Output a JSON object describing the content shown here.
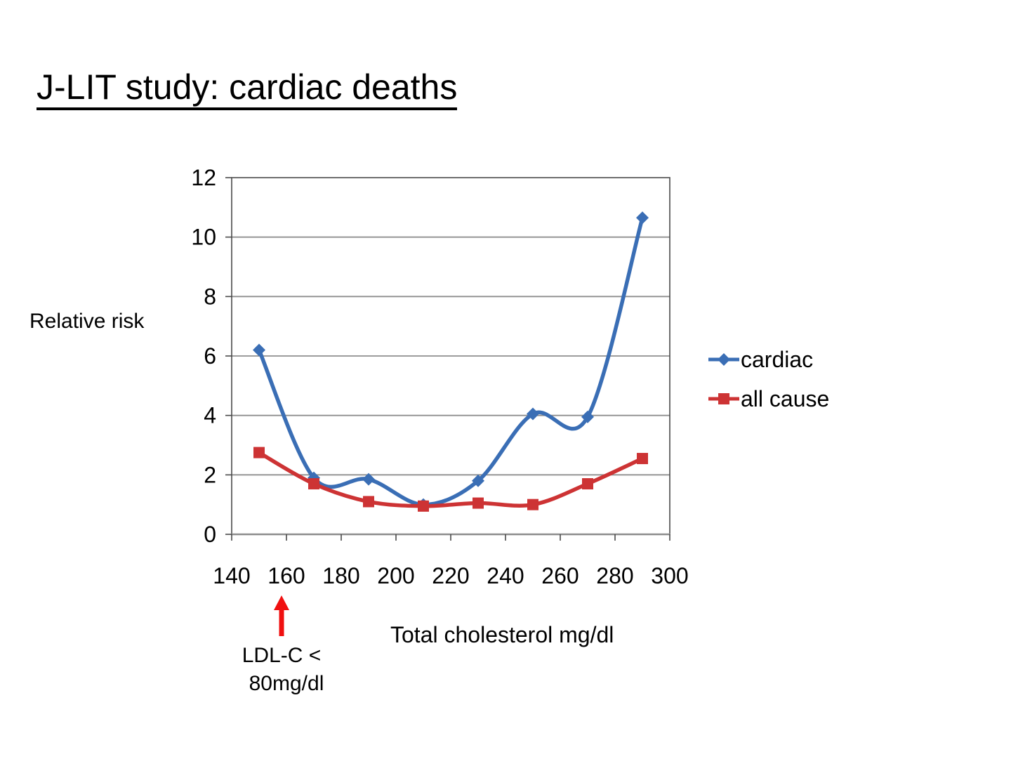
{
  "slide": {
    "title": "J-LIT study: cardiac deaths",
    "y_axis_title": "Relative risk",
    "x_axis_title": "Total cholesterol mg/dl",
    "annotation": {
      "line1": "LDL-C <",
      "line2": "80mg/dl",
      "arrow_color": "#F01010"
    }
  },
  "chart_data": {
    "type": "line",
    "smooth": true,
    "x": [
      150,
      170,
      190,
      210,
      230,
      250,
      270,
      290
    ],
    "series": [
      {
        "name": "cardiac",
        "color": "#3A6EB5",
        "marker": "diamond",
        "values": [
          6.2,
          1.9,
          1.85,
          1.0,
          1.8,
          4.05,
          3.95,
          10.65
        ]
      },
      {
        "name": "all cause",
        "color": "#CD3334",
        "marker": "square",
        "values": [
          2.75,
          1.7,
          1.1,
          0.95,
          1.05,
          1.0,
          1.7,
          2.55
        ]
      }
    ],
    "title": "",
    "xlabel": "Total cholesterol mg/dl",
    "ylabel": "Relative risk",
    "xlim": [
      140,
      300
    ],
    "ylim": [
      0,
      12
    ],
    "xticks": [
      140,
      160,
      180,
      200,
      220,
      240,
      260,
      280,
      300
    ],
    "yticks": [
      0,
      2,
      4,
      6,
      8,
      10,
      12
    ],
    "grid": "horizontal",
    "gridline_color": "#8E8E8E",
    "frame_color": "#4A4A4A",
    "axis_color": "#8C8C8C",
    "legend_position": "right"
  }
}
